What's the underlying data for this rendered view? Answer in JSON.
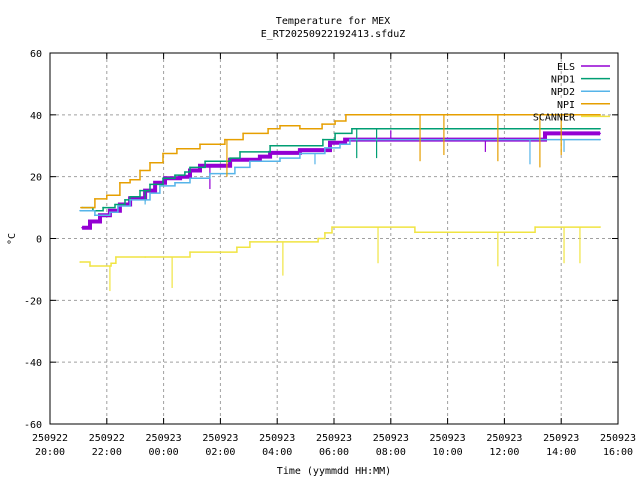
{
  "chart_data": {
    "type": "line",
    "title": "Temperature for MEX",
    "subtitle": "E_RT20250922192413.sfduZ",
    "xlabel": "Time (yymmdd HH:MM)",
    "ylabel": "°C",
    "x_unit": "hours since 250922 20:00",
    "xlim": [
      0,
      20
    ],
    "ylim": [
      -60,
      60
    ],
    "yticks": [
      -60,
      -40,
      -20,
      0,
      20,
      40,
      60
    ],
    "xticks": [
      {
        "h": 0,
        "date": "250922",
        "time": "20:00"
      },
      {
        "h": 2,
        "date": "250922",
        "time": "22:00"
      },
      {
        "h": 4,
        "date": "250923",
        "time": "00:00"
      },
      {
        "h": 6,
        "date": "250923",
        "time": "02:00"
      },
      {
        "h": 8,
        "date": "250923",
        "time": "04:00"
      },
      {
        "h": 10,
        "date": "250923",
        "time": "06:00"
      },
      {
        "h": 12,
        "date": "250923",
        "time": "08:00"
      },
      {
        "h": 14,
        "date": "250923",
        "time": "10:00"
      },
      {
        "h": 16,
        "date": "250923",
        "time": "12:00"
      },
      {
        "h": 18,
        "date": "250923",
        "time": "14:00"
      },
      {
        "h": 20,
        "date": "250923",
        "time": "16:00"
      }
    ],
    "grid": true,
    "legend_position": "top-right",
    "series": [
      {
        "name": "ELS",
        "color": "#9400d3",
        "points": [
          [
            1.13,
            3.5
          ],
          [
            1.41,
            5.5
          ],
          [
            1.76,
            7.5
          ],
          [
            2.11,
            9
          ],
          [
            2.46,
            11
          ],
          [
            2.82,
            13
          ],
          [
            3.35,
            15.5
          ],
          [
            3.7,
            18
          ],
          [
            4.05,
            19.5
          ],
          [
            4.58,
            20
          ],
          [
            4.93,
            22
          ],
          [
            5.28,
            23.5
          ],
          [
            6.34,
            25.5
          ],
          [
            7.39,
            26.5
          ],
          [
            7.75,
            27.7
          ],
          [
            8.8,
            28.6
          ],
          [
            9.86,
            31
          ],
          [
            10.39,
            32
          ],
          [
            17.43,
            34
          ],
          [
            19.37,
            34
          ]
        ],
        "spikes": [
          [
            5.63,
            16
          ],
          [
            15.33,
            28
          ],
          [
            12.0,
            35
          ]
        ]
      },
      {
        "name": "NPD1",
        "color": "#009e73",
        "points": [
          [
            1.13,
            10
          ],
          [
            1.51,
            9
          ],
          [
            1.87,
            10
          ],
          [
            2.29,
            11
          ],
          [
            2.64,
            12.5
          ],
          [
            2.82,
            13.5
          ],
          [
            3.17,
            15.5
          ],
          [
            3.52,
            17.5
          ],
          [
            3.98,
            19.5
          ],
          [
            4.4,
            20.5
          ],
          [
            4.75,
            21.5
          ],
          [
            4.93,
            23
          ],
          [
            5.46,
            25
          ],
          [
            6.34,
            26
          ],
          [
            6.69,
            28
          ],
          [
            7.75,
            30
          ],
          [
            9.61,
            32
          ],
          [
            10.04,
            34
          ],
          [
            10.63,
            35.5
          ],
          [
            19.37,
            35.5
          ]
        ],
        "spikes": [
          [
            10.8,
            26
          ],
          [
            11.5,
            26
          ],
          [
            3.35,
            12
          ]
        ]
      },
      {
        "name": "NPD2",
        "color": "#56b4e9",
        "points": [
          [
            1.06,
            9
          ],
          [
            1.58,
            7.5
          ],
          [
            2.11,
            8.5
          ],
          [
            2.39,
            10.5
          ],
          [
            2.82,
            12.5
          ],
          [
            3.52,
            14.7
          ],
          [
            3.87,
            17
          ],
          [
            4.4,
            18
          ],
          [
            4.93,
            19.5
          ],
          [
            5.63,
            21
          ],
          [
            6.51,
            23
          ],
          [
            7.04,
            25
          ],
          [
            8.1,
            26
          ],
          [
            8.8,
            27.5
          ],
          [
            9.68,
            29.3
          ],
          [
            10.21,
            30.5
          ],
          [
            10.56,
            32
          ],
          [
            19.37,
            32
          ]
        ],
        "spikes": [
          [
            9.33,
            24
          ],
          [
            16.9,
            24
          ],
          [
            18.1,
            28
          ],
          [
            3.35,
            11
          ]
        ]
      },
      {
        "name": "NPI",
        "color": "#e69f00",
        "points": [
          [
            1.09,
            10
          ],
          [
            1.58,
            12.8
          ],
          [
            2.0,
            14
          ],
          [
            2.46,
            18
          ],
          [
            2.82,
            19
          ],
          [
            3.17,
            22
          ],
          [
            3.52,
            24.5
          ],
          [
            3.98,
            27.5
          ],
          [
            4.47,
            29
          ],
          [
            5.28,
            30.5
          ],
          [
            6.16,
            32
          ],
          [
            6.8,
            34
          ],
          [
            7.68,
            35.5
          ],
          [
            8.1,
            36.5
          ],
          [
            8.8,
            35.5
          ],
          [
            9.58,
            37
          ],
          [
            10.04,
            38
          ],
          [
            10.42,
            40
          ],
          [
            19.37,
            40
          ]
        ],
        "spikes": [
          [
            6.23,
            20
          ],
          [
            13.03,
            25
          ],
          [
            13.87,
            27
          ],
          [
            15.77,
            25
          ],
          [
            17.25,
            23
          ],
          [
            18.0,
            27
          ]
        ]
      },
      {
        "name": "SCANNER",
        "color": "#f0e442",
        "points": [
          [
            1.06,
            -7.6
          ],
          [
            1.41,
            -8.9
          ],
          [
            2.15,
            -8
          ],
          [
            2.32,
            -6
          ],
          [
            3.35,
            -6
          ],
          [
            4.93,
            -4.4
          ],
          [
            6.58,
            -2.8
          ],
          [
            7.04,
            -1.1
          ],
          [
            9.44,
            0
          ],
          [
            9.68,
            1.8
          ],
          [
            9.93,
            3.7
          ],
          [
            12.85,
            2
          ],
          [
            17.08,
            3.7
          ],
          [
            19.37,
            3.7
          ]
        ],
        "spikes": [
          [
            2.11,
            -17
          ],
          [
            4.3,
            -16
          ],
          [
            8.2,
            -12
          ],
          [
            11.55,
            -8
          ],
          [
            15.77,
            -9
          ],
          [
            18.1,
            -8
          ],
          [
            18.66,
            -8
          ]
        ]
      }
    ]
  }
}
